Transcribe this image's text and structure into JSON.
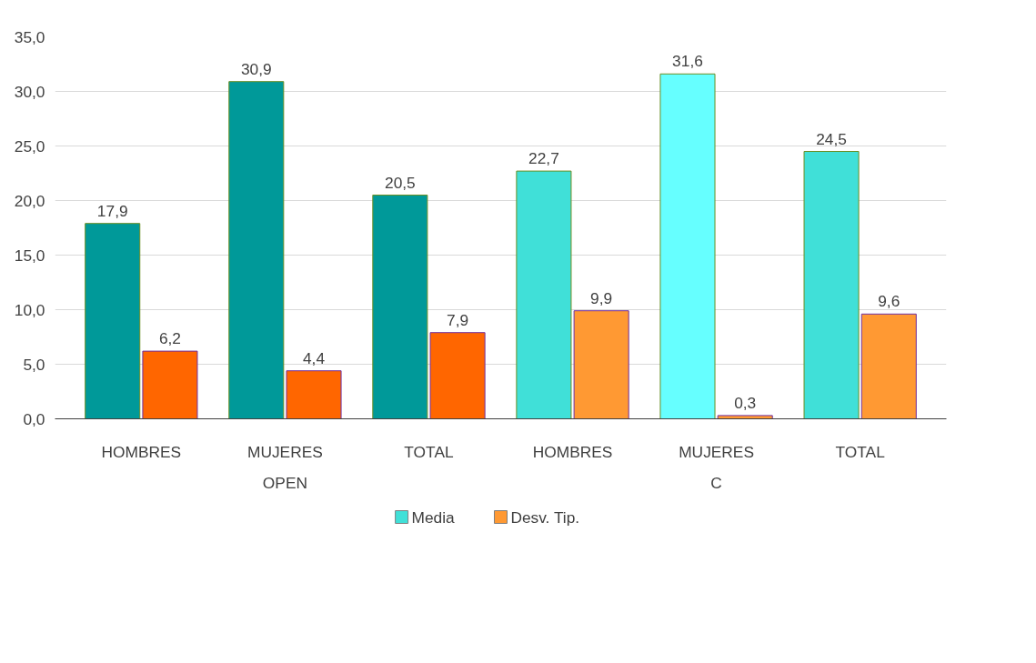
{
  "chart_data": {
    "type": "bar",
    "categories": [
      "HOMBRES",
      "MUJERES",
      "TOTAL",
      "HOMBRES",
      "MUJERES",
      "TOTAL"
    ],
    "annotations": [
      "OPEN",
      "C"
    ],
    "series": [
      {
        "name": "Media",
        "color": "#40e0d8",
        "colors": [
          "#009999",
          "#009999",
          "#009999",
          "#40e0d8",
          "#66ffff",
          "#40e0d8"
        ],
        "values": [
          17.9,
          30.9,
          20.5,
          22.7,
          31.6,
          24.5
        ],
        "value_labels": [
          "17,9",
          "30,9",
          "20,5",
          "22,7",
          "31,6",
          "24,5"
        ]
      },
      {
        "name": "Desv. Tip.",
        "color": "#ff9933",
        "colors": [
          "#ff6600",
          "#ff6600",
          "#ff6600",
          "#ff9933",
          "#ff9933",
          "#ff9933"
        ],
        "values": [
          6.2,
          4.4,
          7.9,
          9.9,
          0.3,
          9.6
        ],
        "value_labels": [
          "6,2",
          "4,4",
          "7,9",
          "9,9",
          "0,3",
          "9,6"
        ]
      }
    ],
    "ylim": [
      0,
      35
    ],
    "yticks": [
      {
        "value": 0,
        "label": "0,0"
      },
      {
        "value": 5,
        "label": "5,0"
      },
      {
        "value": 10,
        "label": "10,0"
      },
      {
        "value": 15,
        "label": "15,0"
      },
      {
        "value": 20,
        "label": "20,0"
      },
      {
        "value": 25,
        "label": "25,0"
      },
      {
        "value": 30,
        "label": "30,0"
      },
      {
        "value": 35,
        "label": "35,0"
      }
    ],
    "grid": "y",
    "legend": "bottom"
  }
}
